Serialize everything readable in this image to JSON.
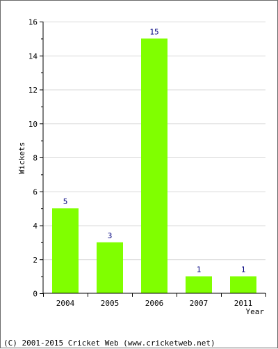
{
  "chart_data": {
    "type": "bar",
    "categories": [
      "2004",
      "2005",
      "2006",
      "2007",
      "2011"
    ],
    "values": [
      5,
      3,
      15,
      1,
      1
    ],
    "ylabel": "Wickets",
    "xlabel": "Year",
    "ylim": [
      0,
      16
    ],
    "yticks": [
      "0",
      "2",
      "4",
      "6",
      "8",
      "10",
      "12",
      "14",
      "16"
    ],
    "grid": true,
    "bar_color": "#80ff00"
  },
  "footer": {
    "copyright": "(C) 2001-2015 Cricket Web (www.cricketweb.net)"
  }
}
